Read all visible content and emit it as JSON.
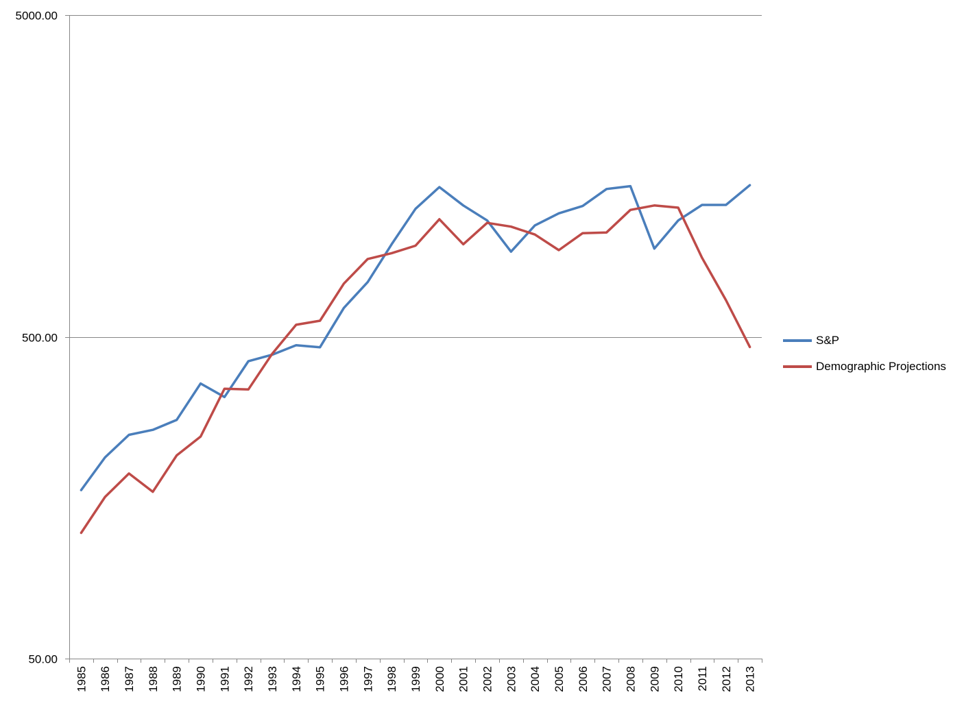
{
  "chart_data": {
    "type": "line",
    "title": "",
    "xlabel": "",
    "ylabel": "",
    "y_scale": "log",
    "ylim": [
      50,
      5000
    ],
    "y_ticks": [
      {
        "value": 5000,
        "label": "5000.00"
      },
      {
        "value": 500,
        "label": "500.00"
      },
      {
        "value": 50,
        "label": "50.00"
      }
    ],
    "grid": "horizontal",
    "legend_position": "right",
    "categories": [
      "1985",
      "1986",
      "1987",
      "1988",
      "1989",
      "1990",
      "1991",
      "1992",
      "1993",
      "1994",
      "1995",
      "1996",
      "1997",
      "1998",
      "1999",
      "2000",
      "2001",
      "2002",
      "2003",
      "2004",
      "2005",
      "2006",
      "2007",
      "2008",
      "2009",
      "2010",
      "2011",
      "2012",
      "2013"
    ],
    "series": [
      {
        "name": "S&P",
        "color": "#4a7ebb",
        "values": [
          167,
          211,
          248,
          257,
          276,
          358,
          325,
          420,
          440,
          471,
          464,
          615,
          740,
          970,
          1250,
          1460,
          1280,
          1150,
          920,
          1110,
          1210,
          1275,
          1440,
          1470,
          940,
          1150,
          1285,
          1285,
          1480
        ]
      },
      {
        "name": "Demographic Projections",
        "color": "#be4b48",
        "values": [
          123,
          159,
          188,
          165,
          214,
          245,
          345,
          343,
          443,
          545,
          561,
          732,
          873,
          910,
          960,
          1160,
          970,
          1130,
          1100,
          1040,
          930,
          1050,
          1055,
          1240,
          1280,
          1260,
          880,
          650,
          465
        ]
      }
    ]
  }
}
